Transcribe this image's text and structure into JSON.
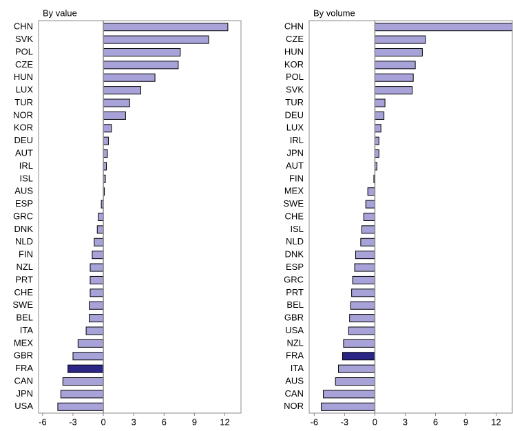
{
  "chart_data": [
    {
      "type": "barh",
      "title": "By value",
      "highlight": "FRA",
      "color": "#a7a3d9",
      "highlight_color": "#2b2686",
      "categories": [
        "CHN",
        "SVK",
        "POL",
        "CZE",
        "HUN",
        "LUX",
        "TUR",
        "NOR",
        "KOR",
        "DEU",
        "AUT",
        "IRL",
        "ISL",
        "AUS",
        "ESP",
        "GRC",
        "DNK",
        "NLD",
        "FIN",
        "NZL",
        "PRT",
        "CHE",
        "SWE",
        "BEL",
        "ITA",
        "MEX",
        "GBR",
        "FRA",
        "CAN",
        "JPN",
        "USA"
      ],
      "values": [
        12.3,
        10.4,
        7.6,
        7.4,
        5.1,
        3.7,
        2.6,
        2.2,
        0.8,
        0.5,
        0.4,
        0.3,
        0.2,
        0.1,
        -0.2,
        -0.5,
        -0.6,
        -0.9,
        -1.1,
        -1.3,
        -1.3,
        -1.3,
        -1.4,
        -1.4,
        -1.7,
        -2.5,
        -3.0,
        -3.5,
        -4.0,
        -4.2,
        -4.5
      ],
      "xlim": [
        -6.4,
        13.6
      ],
      "xticks": [
        -6,
        -3,
        0,
        3,
        6,
        9,
        12
      ]
    },
    {
      "type": "barh",
      "title": "By volume",
      "highlight": "FRA",
      "color": "#a7a3d9",
      "highlight_color": "#2b2686",
      "categories": [
        "CHN",
        "CZE",
        "HUN",
        "KOR",
        "POL",
        "SVK",
        "TUR",
        "DEU",
        "LUX",
        "IRL",
        "JPN",
        "AUT",
        "FIN",
        "MEX",
        "SWE",
        "CHE",
        "ISL",
        "NLD",
        "DNK",
        "ESP",
        "GRC",
        "PRT",
        "BEL",
        "GBR",
        "USA",
        "NZL",
        "FRA",
        "ITA",
        "AUS",
        "CAN",
        "NOR"
      ],
      "values": [
        14.5,
        5.0,
        4.7,
        4.0,
        3.8,
        3.7,
        1.0,
        0.9,
        0.6,
        0.4,
        0.4,
        0.2,
        -0.1,
        -0.7,
        -0.9,
        -1.1,
        -1.3,
        -1.4,
        -1.9,
        -2.0,
        -2.2,
        -2.3,
        -2.4,
        -2.5,
        -2.6,
        -3.1,
        -3.2,
        -3.6,
        -3.9,
        -5.1,
        -5.3
      ],
      "xlim": [
        -6.5,
        13.6
      ],
      "xticks": [
        -6,
        -3,
        0,
        3,
        6,
        9,
        12
      ]
    }
  ]
}
